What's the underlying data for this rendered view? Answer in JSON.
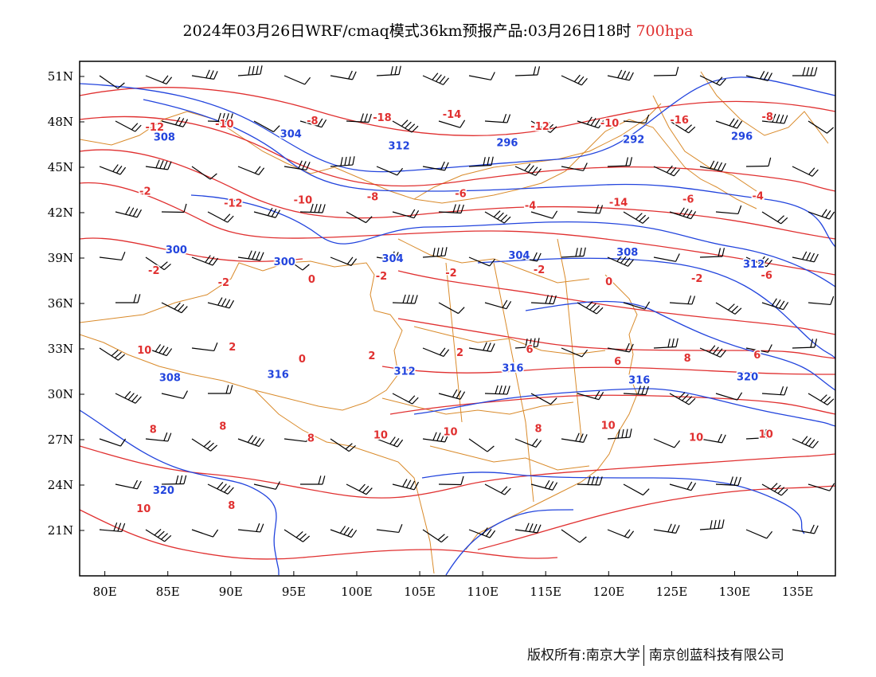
{
  "title": {
    "main": "2024年03月26日WRF/cmaq模式36km预报产品:03月26日18时",
    "level": "700hpa"
  },
  "footer": {
    "copyright": "版权所有:南京大学",
    "company": "南京创蓝科技有限公司"
  },
  "axes": {
    "lon_labels": [
      "80E",
      "85E",
      "90E",
      "95E",
      "100E",
      "105E",
      "110E",
      "115E",
      "120E",
      "125E",
      "130E",
      "135E"
    ],
    "lon_values": [
      80,
      85,
      90,
      95,
      100,
      105,
      110,
      115,
      120,
      125,
      130,
      135
    ],
    "lat_labels": [
      "21N",
      "24N",
      "27N",
      "30N",
      "33N",
      "36N",
      "39N",
      "42N",
      "45N",
      "48N",
      "51N"
    ],
    "lat_values": [
      21,
      24,
      27,
      30,
      33,
      36,
      39,
      42,
      45,
      48,
      51
    ],
    "lon_range": [
      78,
      138
    ],
    "lat_range": [
      18,
      52
    ]
  },
  "colors": {
    "height_contours": "#2244dd",
    "temperature_contours": "#e03030",
    "borders": "#d98a2a",
    "wind_barbs": "#000000",
    "level_text": "#e03030"
  },
  "height_contour_labels": [
    "308",
    "304",
    "312",
    "296",
    "292",
    "296",
    "300",
    "300",
    "304",
    "304",
    "308",
    "312",
    "308",
    "316",
    "312",
    "316",
    "316",
    "320",
    "320"
  ],
  "temperature_contour_labels": [
    "-12",
    "-10",
    "-8",
    "-18",
    "-14",
    "-12",
    "-10",
    "-16",
    "-8",
    "-2",
    "-12",
    "-10",
    "-8",
    "-6",
    "-4",
    "-14",
    "-6",
    "-4",
    "-2",
    "-2",
    "0",
    "-2",
    "-2",
    "-2",
    "0",
    "-2",
    "-6",
    "10",
    "2",
    "0",
    "2",
    "2",
    "6",
    "6",
    "8",
    "6",
    "8",
    "8",
    "8",
    "10",
    "10",
    "8",
    "10",
    "10",
    "10",
    "10",
    "8"
  ]
}
